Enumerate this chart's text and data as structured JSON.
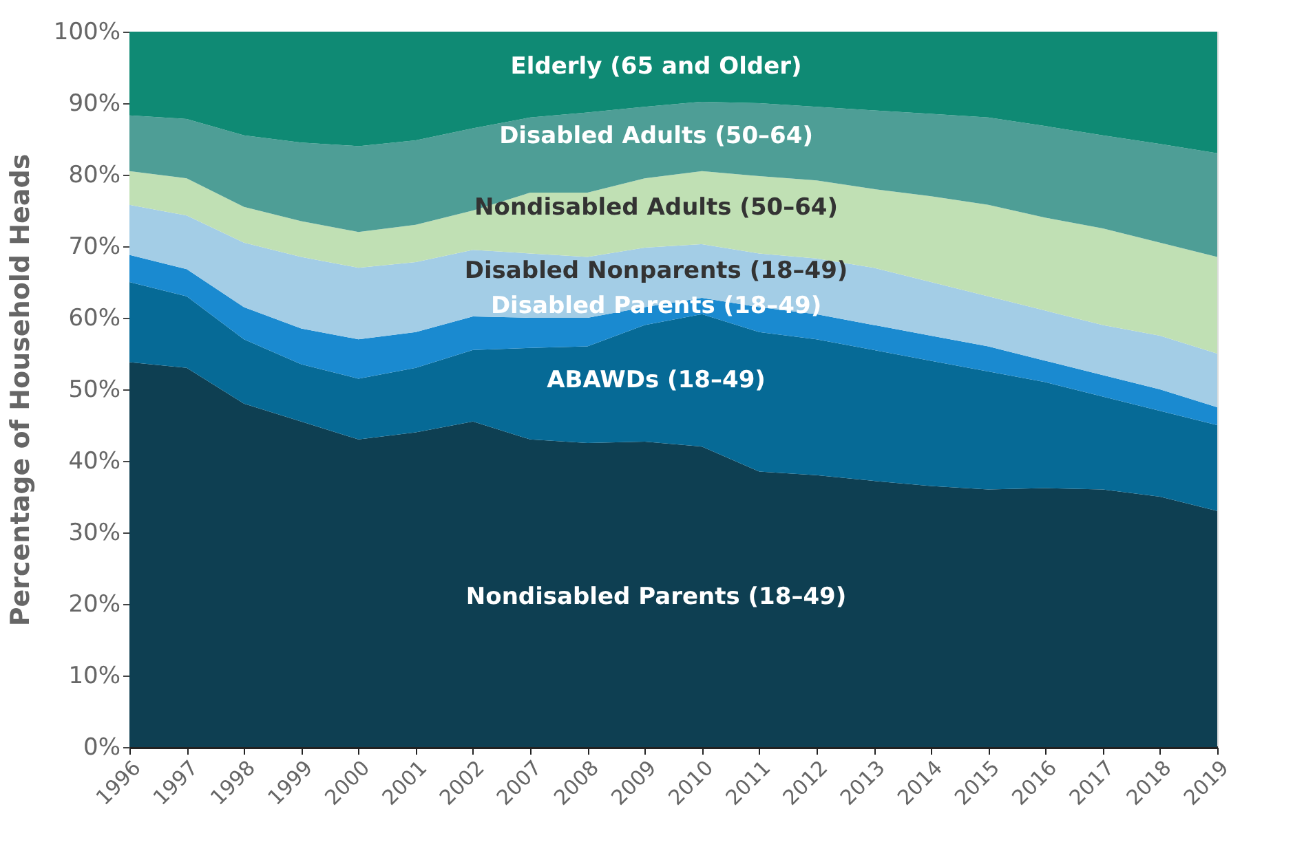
{
  "chart_data": {
    "type": "area",
    "stacked": true,
    "ylabel": "Percentage of Household Heads",
    "categories": [
      "1996",
      "1997",
      "1998",
      "1999",
      "2000",
      "2001",
      "2002",
      "2007",
      "2008",
      "2009",
      "2010",
      "2011",
      "2012",
      "2013",
      "2014",
      "2015",
      "2016",
      "2017",
      "2018",
      "2019"
    ],
    "ylim": [
      0,
      100
    ],
    "yticks": [
      {
        "value": 0,
        "label": "0%"
      },
      {
        "value": 10,
        "label": "10%"
      },
      {
        "value": 20,
        "label": "20%"
      },
      {
        "value": 30,
        "label": "30%"
      },
      {
        "value": 40,
        "label": "40%"
      },
      {
        "value": 50,
        "label": "50%"
      },
      {
        "value": 60,
        "label": "60%"
      },
      {
        "value": 70,
        "label": "70%"
      },
      {
        "value": 80,
        "label": "80%"
      },
      {
        "value": 90,
        "label": "90%"
      },
      {
        "value": 100,
        "label": "100%"
      }
    ],
    "grid": false,
    "legend": false,
    "series": [
      {
        "name": "Nondisabled Parents (18–49)",
        "color": "#0e3f52",
        "values": [
          53.8,
          53,
          48,
          45.5,
          43,
          44,
          45.5,
          43,
          42.5,
          42.7,
          42,
          38.5,
          38,
          37.2,
          36.5,
          36,
          36.2,
          36,
          35,
          33
        ]
      },
      {
        "name": "ABAWDs (18–49)",
        "color": "#066a96",
        "values": [
          11.2,
          10,
          9,
          8,
          8.5,
          9,
          10,
          12.8,
          13.5,
          16.3,
          18.5,
          19.5,
          19,
          18.3,
          17.5,
          16.5,
          14.8,
          13,
          12,
          12
        ]
      },
      {
        "name": "Disabled Parents (18–49)",
        "color": "#1a8ad0",
        "values": [
          3.8,
          3.8,
          4.5,
          5,
          5.5,
          5,
          4.7,
          4.2,
          4,
          2.5,
          2.3,
          3.5,
          3.5,
          3.5,
          3.5,
          3.5,
          3,
          3,
          3,
          2.5
        ]
      },
      {
        "name": "Disabled Nonparents (18–49)",
        "color": "#a3cde6",
        "values": [
          7,
          7.5,
          9,
          10,
          10,
          9.8,
          9.3,
          9,
          8.5,
          8.3,
          7.5,
          7.5,
          7.8,
          8,
          7.5,
          7,
          7,
          7,
          7.5,
          7.5
        ]
      },
      {
        "name": "Nondisabled Adults (50–64)",
        "color": "#c0e0b4",
        "values": [
          4.7,
          5.2,
          5,
          5,
          5,
          5.2,
          5.5,
          8.5,
          9,
          9.7,
          10.2,
          10.8,
          10.9,
          11,
          12,
          12.8,
          13,
          13.5,
          13,
          13.5
        ]
      },
      {
        "name": "Disabled Adults (50–64)",
        "color": "#4e9e96",
        "values": [
          7.8,
          8.3,
          10,
          11,
          12,
          11.8,
          11.5,
          10.5,
          11.2,
          10,
          9.7,
          10.2,
          10.3,
          11,
          11.5,
          12.2,
          12.8,
          13,
          13.8,
          14.5
        ]
      },
      {
        "name": "Elderly (65 and Older)",
        "color": "#0f8a74",
        "values": [
          11.7,
          12.2,
          14.5,
          15.5,
          16,
          15.2,
          13.5,
          12,
          11.3,
          10.5,
          9.8,
          10,
          10.5,
          11,
          11.5,
          12,
          13.2,
          14.5,
          15.7,
          17
        ]
      }
    ]
  }
}
